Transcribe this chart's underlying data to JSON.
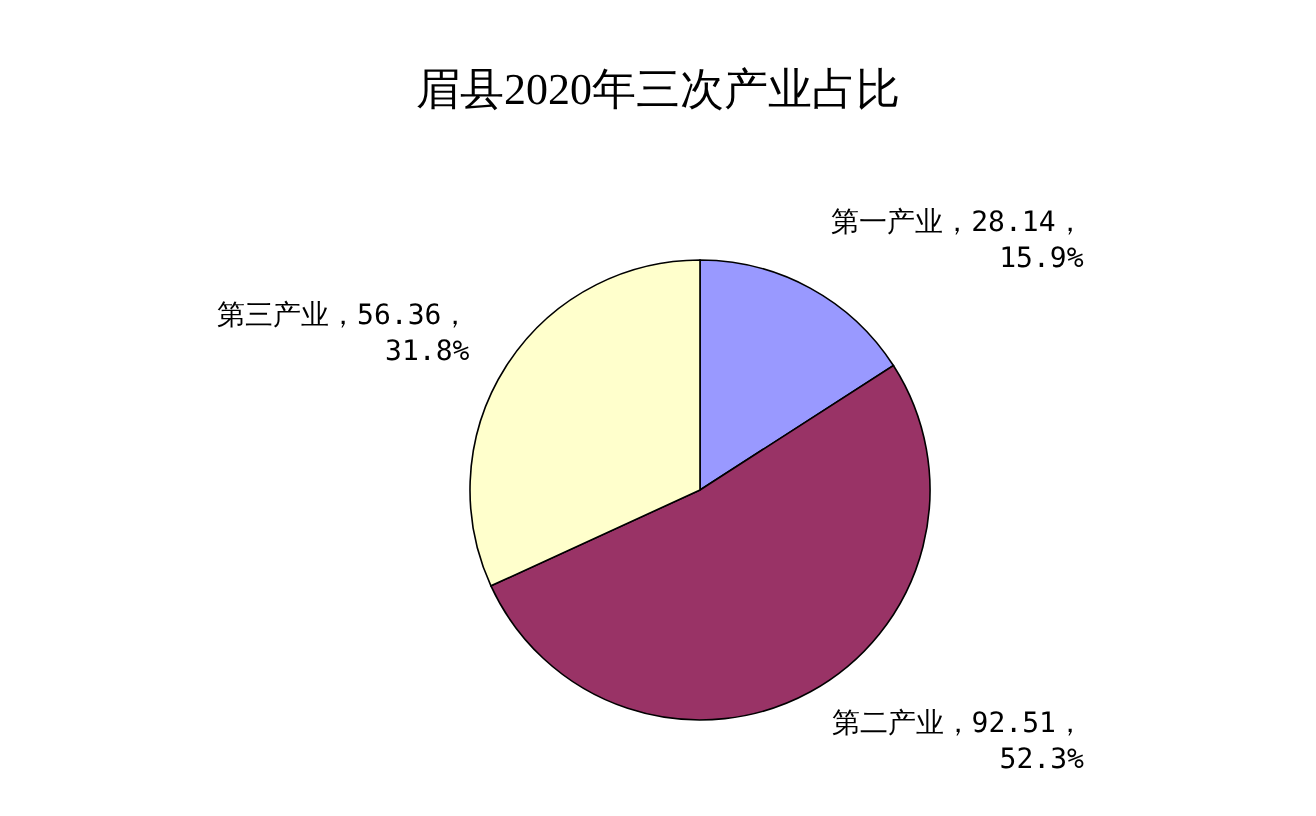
{
  "chart_data": {
    "type": "pie",
    "title": "眉县2020年三次产业占比",
    "categories": [
      "第一产业",
      "第二产业",
      "第三产业"
    ],
    "values": [
      28.14,
      92.51,
      56.36
    ],
    "colors": [
      "#9999ff",
      "#993366",
      "#ffffcc"
    ],
    "value_labels": [
      "，28.14，\n15.9%",
      "，92.51，\n52.3%",
      "，56.36，\n31.8%"
    ]
  }
}
